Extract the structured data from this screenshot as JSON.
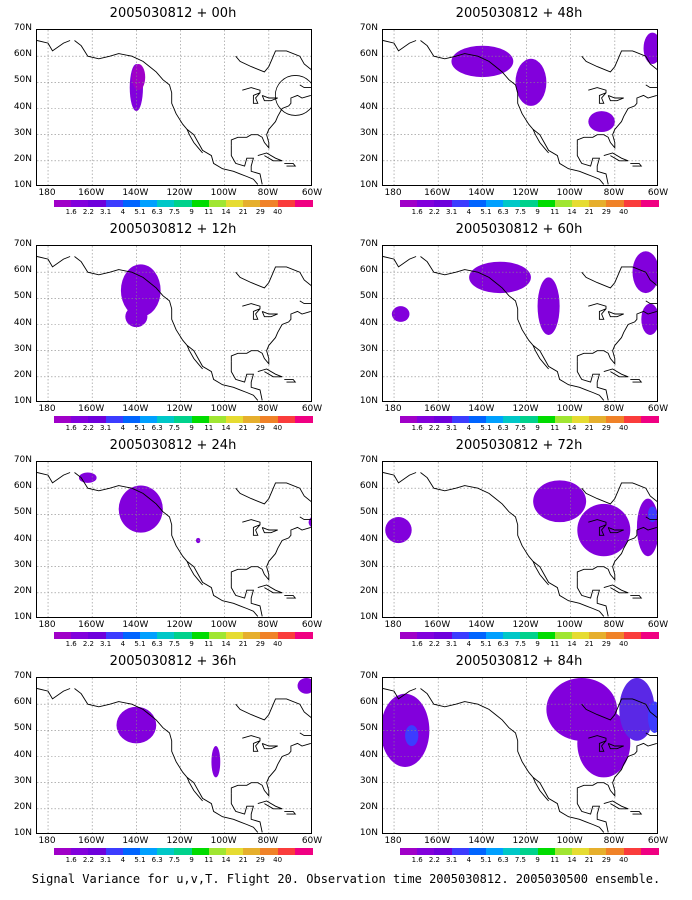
{
  "caption": "Signal Variance for u,v,T. Flight 20. Observation time 2005030812. 2005030500 ensemble.",
  "lat_labels": [
    "70N",
    "60N",
    "50N",
    "40N",
    "30N",
    "20N",
    "10N"
  ],
  "lon_labels": [
    "180",
    "160W",
    "140W",
    "120W",
    "100W",
    "80W",
    "60W"
  ],
  "colorbar": {
    "labels": [
      "1.6",
      "2.2",
      "3.1",
      "4",
      "5.1",
      "6.3",
      "7.5",
      "9",
      "11",
      "14",
      "21",
      "29",
      "40"
    ],
    "colors": [
      "#a000c8",
      "#8200dc",
      "#6e00dc",
      "#3c3cff",
      "#0064ff",
      "#00a0ff",
      "#00c8c8",
      "#00d28c",
      "#00dc00",
      "#a0e632",
      "#e6dc32",
      "#e6af2d",
      "#f08228",
      "#fa3c3c",
      "#f00082"
    ]
  },
  "panels": [
    {
      "title": "2005030812 + 00h",
      "blobs": [
        {
          "lon": -140,
          "lat": 48,
          "rx": 3,
          "ry": 9,
          "level": 1
        },
        {
          "lon": -139,
          "lat": 52,
          "rx": 3,
          "ry": 5,
          "level": 0
        }
      ],
      "circle": {
        "lon": -68,
        "lat": 45
      }
    },
    {
      "title": "2005030812 + 12h",
      "blobs": [
        {
          "lon": -138,
          "lat": 53,
          "rx": 9,
          "ry": 10,
          "level": 1
        },
        {
          "lon": -140,
          "lat": 43,
          "rx": 5,
          "ry": 4,
          "level": 1
        }
      ]
    },
    {
      "title": "2005030812 + 24h",
      "blobs": [
        {
          "lon": -138,
          "lat": 52,
          "rx": 10,
          "ry": 9,
          "level": 1
        },
        {
          "lon": -162,
          "lat": 64,
          "rx": 4,
          "ry": 2,
          "level": 1
        },
        {
          "lon": -112,
          "lat": 40,
          "rx": 1,
          "ry": 1,
          "level": 1
        },
        {
          "lon": -60,
          "lat": 47,
          "rx": 2,
          "ry": 2,
          "level": 1
        }
      ]
    },
    {
      "title": "2005030812 + 36h",
      "blobs": [
        {
          "lon": -140,
          "lat": 52,
          "rx": 9,
          "ry": 7,
          "level": 1
        },
        {
          "lon": -104,
          "lat": 38,
          "rx": 2,
          "ry": 6,
          "level": 1
        },
        {
          "lon": -63,
          "lat": 67,
          "rx": 4,
          "ry": 3,
          "level": 1
        }
      ]
    },
    {
      "title": "2005030812 + 48h",
      "blobs": [
        {
          "lon": -140,
          "lat": 58,
          "rx": 14,
          "ry": 6,
          "level": 1
        },
        {
          "lon": -118,
          "lat": 50,
          "rx": 7,
          "ry": 9,
          "level": 1
        },
        {
          "lon": -86,
          "lat": 35,
          "rx": 6,
          "ry": 4,
          "level": 1
        },
        {
          "lon": -63,
          "lat": 63,
          "rx": 4,
          "ry": 6,
          "level": 1
        }
      ]
    },
    {
      "title": "2005030812 + 60h",
      "blobs": [
        {
          "lon": -132,
          "lat": 58,
          "rx": 14,
          "ry": 6,
          "level": 1
        },
        {
          "lon": -110,
          "lat": 47,
          "rx": 5,
          "ry": 11,
          "level": 1
        },
        {
          "lon": -177,
          "lat": 44,
          "rx": 4,
          "ry": 3,
          "level": 1
        },
        {
          "lon": -66,
          "lat": 60,
          "rx": 6,
          "ry": 8,
          "level": 1
        },
        {
          "lon": -64,
          "lat": 42,
          "rx": 4,
          "ry": 6,
          "level": 1
        }
      ]
    },
    {
      "title": "2005030812 + 72h",
      "blobs": [
        {
          "lon": -105,
          "lat": 55,
          "rx": 12,
          "ry": 8,
          "level": 1
        },
        {
          "lon": -85,
          "lat": 44,
          "rx": 12,
          "ry": 10,
          "level": 1
        },
        {
          "lon": -178,
          "lat": 44,
          "rx": 6,
          "ry": 5,
          "level": 1
        },
        {
          "lon": -65,
          "lat": 45,
          "rx": 5,
          "ry": 11,
          "level": 1
        },
        {
          "lon": -63,
          "lat": 50,
          "rx": 2,
          "ry": 3,
          "level": 3
        }
      ]
    },
    {
      "title": "2005030812 + 84h",
      "blobs": [
        {
          "lon": -175,
          "lat": 50,
          "rx": 11,
          "ry": 14,
          "level": 1
        },
        {
          "lon": -172,
          "lat": 48,
          "rx": 3,
          "ry": 4,
          "level": 3
        },
        {
          "lon": -95,
          "lat": 58,
          "rx": 16,
          "ry": 12,
          "level": 1
        },
        {
          "lon": -85,
          "lat": 45,
          "rx": 12,
          "ry": 13,
          "level": 1
        },
        {
          "lon": -70,
          "lat": 58,
          "rx": 8,
          "ry": 12,
          "level": 2
        },
        {
          "lon": -62,
          "lat": 55,
          "rx": 3,
          "ry": 6,
          "level": 3
        }
      ]
    }
  ]
}
